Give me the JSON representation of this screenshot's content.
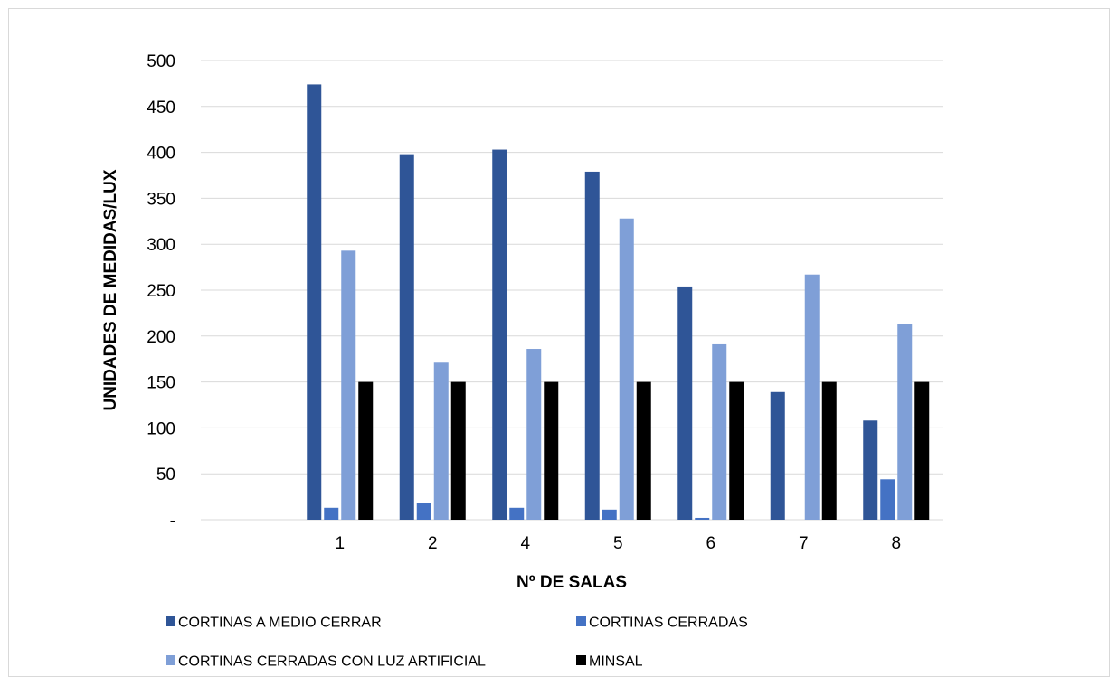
{
  "chart_data": {
    "type": "bar",
    "xlabel": "Nº DE SALAS",
    "ylabel": "UNIDADES DE MEDIDAS/LUX",
    "ylim": [
      0,
      500
    ],
    "y_ticks": [
      {
        "value": 0,
        "label": "-"
      },
      {
        "value": 50,
        "label": "50"
      },
      {
        "value": 100,
        "label": "100"
      },
      {
        "value": 150,
        "label": "150"
      },
      {
        "value": 200,
        "label": "200"
      },
      {
        "value": 250,
        "label": "250"
      },
      {
        "value": 300,
        "label": "300"
      },
      {
        "value": 350,
        "label": "350"
      },
      {
        "value": 400,
        "label": "400"
      },
      {
        "value": 450,
        "label": "450"
      },
      {
        "value": 500,
        "label": "500"
      }
    ],
    "grid": true,
    "legend_position": "bottom",
    "categories": [
      "",
      "1",
      "2",
      "4",
      "5",
      "6",
      "7",
      "8"
    ],
    "series": [
      {
        "name": "CORTINAS A MEDIO CERRAR",
        "color": "#2f5597",
        "values": [
          null,
          474,
          398,
          403,
          379,
          254,
          139,
          108
        ]
      },
      {
        "name": "CORTINAS CERRADAS",
        "color": "#4472c4",
        "values": [
          null,
          13,
          18,
          13,
          11,
          2,
          0,
          44
        ]
      },
      {
        "name": "CORTINAS CERRADAS CON LUZ ARTIFICIAL",
        "color": "#7f9fd7",
        "values": [
          null,
          293,
          171,
          186,
          328,
          191,
          267,
          213
        ]
      },
      {
        "name": "MINSAL",
        "color": "#000000",
        "values": [
          null,
          150,
          150,
          150,
          150,
          150,
          150,
          150
        ]
      }
    ]
  }
}
